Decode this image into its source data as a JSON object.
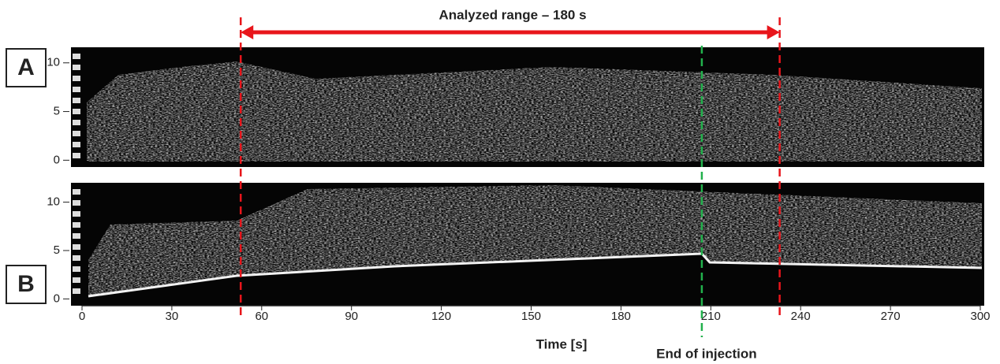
{
  "chart_data": {
    "type": "image",
    "title": "Analyzed range – 180 s",
    "xlabel": "Time [s]",
    "xlim": [
      0,
      300
    ],
    "xticks": [
      0,
      30,
      60,
      90,
      120,
      150,
      180,
      210,
      240,
      270,
      300
    ],
    "panels": [
      {
        "label": "A",
        "ylim": [
          -0.7,
          11.6
        ],
        "yticks": [
          0,
          5,
          10
        ]
      },
      {
        "label": "B",
        "ylim": [
          -0.7,
          12
        ],
        "yticks": [
          0,
          5,
          10
        ]
      }
    ],
    "range": [
      53,
      233
    ],
    "range_color": "#e8151b",
    "injection_end": {
      "text": "End of injection",
      "x": 207,
      "color": "#22b14c"
    }
  }
}
